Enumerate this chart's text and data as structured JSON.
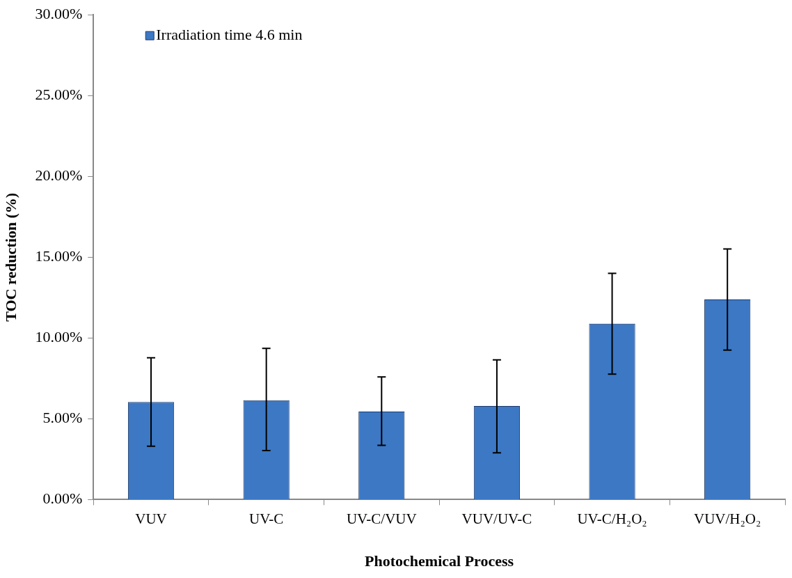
{
  "chart_data": {
    "type": "bar",
    "xlabel": "Photochemical Process",
    "ylabel": "TOC reduction (%)",
    "categories": [
      "VUV",
      "UV-C",
      "UV-C/VUV",
      "VUV/UV-C",
      "UV-C/H₂O₂",
      "VUV/H₂O₂"
    ],
    "series": [
      {
        "name": "Irradiation time 4.6 min",
        "color": "#3c78c4",
        "values": [
          6.04,
          6.15,
          5.45,
          5.79,
          10.89,
          12.38
        ],
        "errors": [
          [
            3.3,
            8.78
          ],
          [
            3.03,
            9.36
          ],
          [
            3.36,
            7.59
          ],
          [
            2.89,
            8.65
          ],
          [
            7.76,
            14.0
          ],
          [
            9.25,
            15.51
          ]
        ]
      }
    ],
    "ylim": [
      0,
      30
    ],
    "yticks": [
      {
        "value": 0,
        "label": "0.00%"
      },
      {
        "value": 5,
        "label": "5.00%"
      },
      {
        "value": 10,
        "label": "10.00%"
      },
      {
        "value": 15,
        "label": "15.00%"
      },
      {
        "value": 20,
        "label": "20.00%"
      },
      {
        "value": 25,
        "label": "25.00%"
      },
      {
        "value": 30,
        "label": "30.00%"
      }
    ],
    "grid": false,
    "legend": "top left"
  }
}
